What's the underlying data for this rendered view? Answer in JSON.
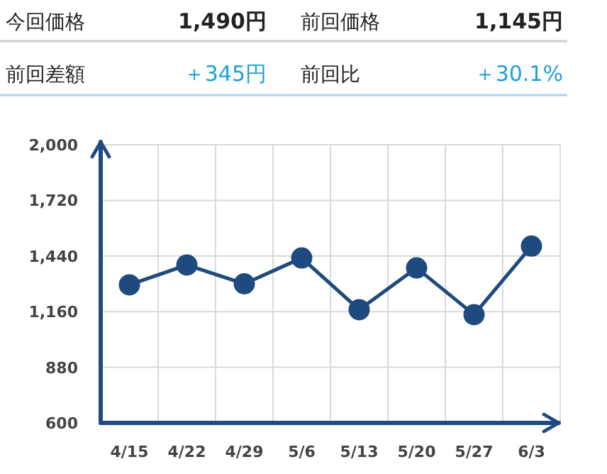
{
  "chart_data": [
    {
      "type": "other",
      "annotations": [
        "今回価格",
        "1,490円",
        "前回価格",
        "1,145円",
        "前回差額",
        "＋345円",
        "前回比",
        "＋30.1%"
      ]
    },
    {
      "type": "line",
      "categories": [
        "4/15",
        "4/22",
        "4/29",
        "5/6",
        "5/13",
        "5/20",
        "5/27",
        "6/3"
      ],
      "values": [
        1295,
        1395,
        1300,
        1430,
        1170,
        1380,
        1145,
        1490
      ],
      "color": "#1f4a7f",
      "marker": "circle",
      "grid": true,
      "ylim": [
        600,
        2000
      ],
      "yticks": [
        {
          "value": 600,
          "label": "600"
        },
        {
          "value": 880,
          "label": "880"
        },
        {
          "value": 1160,
          "label": "1,160"
        },
        {
          "value": 1440,
          "label": "1,440"
        },
        {
          "value": 1720,
          "label": "1,720"
        },
        {
          "value": 2000,
          "label": "2,000"
        }
      ]
    }
  ]
}
